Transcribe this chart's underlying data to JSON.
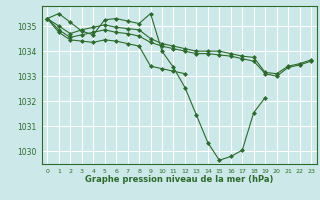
{
  "title": "Graphe pression niveau de la mer (hPa)",
  "bg_color": "#cce8e8",
  "grid_color": "#ffffff",
  "line_color": "#2d6a2d",
  "marker_color": "#2d6a2d",
  "ylim": [
    1029.5,
    1035.8
  ],
  "xlim": [
    -0.5,
    23.5
  ],
  "yticks": [
    1030,
    1031,
    1032,
    1033,
    1034,
    1035
  ],
  "xticks": [
    0,
    1,
    2,
    3,
    4,
    5,
    6,
    7,
    8,
    9,
    10,
    11,
    12,
    13,
    14,
    15,
    16,
    17,
    18,
    19,
    20,
    21,
    22,
    23
  ],
  "series": [
    [
      1035.3,
      1035.5,
      1035.15,
      1034.8,
      1034.65,
      1035.25,
      1035.3,
      1035.2,
      1035.1,
      1035.5,
      1034.0,
      1033.35,
      1032.55,
      1031.45,
      1030.35,
      1029.65,
      1029.8,
      1030.05,
      1031.55,
      1032.15,
      null,
      null,
      null,
      null
    ],
    [
      1035.3,
      1035.0,
      1034.7,
      1034.85,
      1034.95,
      1035.05,
      1034.95,
      1034.9,
      1034.85,
      1034.5,
      1034.3,
      1034.2,
      1034.1,
      1034.0,
      1034.0,
      1034.0,
      1033.9,
      1033.8,
      1033.75,
      1033.15,
      1033.1,
      1033.4,
      1033.5,
      1033.65
    ],
    [
      1035.3,
      1034.85,
      1034.55,
      1034.65,
      1034.75,
      1034.85,
      1034.75,
      1034.7,
      1034.6,
      1034.35,
      1034.2,
      1034.1,
      1034.0,
      1033.9,
      1033.9,
      1033.85,
      1033.8,
      1033.7,
      1033.6,
      1033.1,
      1033.0,
      1033.35,
      1033.45,
      1033.6
    ],
    [
      1035.3,
      1034.75,
      1034.45,
      1034.4,
      1034.35,
      1034.45,
      1034.4,
      1034.3,
      1034.2,
      1033.4,
      1033.3,
      1033.2,
      1033.1,
      null,
      null,
      null,
      null,
      null,
      null,
      null,
      null,
      null,
      null,
      null
    ]
  ]
}
